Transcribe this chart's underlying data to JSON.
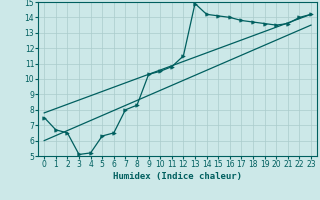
{
  "xlabel": "Humidex (Indice chaleur)",
  "xlim": [
    -0.5,
    23.5
  ],
  "ylim": [
    5,
    15
  ],
  "yticks": [
    5,
    6,
    7,
    8,
    9,
    10,
    11,
    12,
    13,
    14,
    15
  ],
  "xticks": [
    0,
    1,
    2,
    3,
    4,
    5,
    6,
    7,
    8,
    9,
    10,
    11,
    12,
    13,
    14,
    15,
    16,
    17,
    18,
    19,
    20,
    21,
    22,
    23
  ],
  "bg_color": "#cce8e8",
  "line_color": "#005f5f",
  "grid_color": "#aacccc",
  "curve1_x": [
    0,
    1,
    2,
    3,
    4,
    5,
    6,
    7,
    8,
    9,
    10,
    11,
    12,
    13,
    14,
    15,
    16,
    17,
    18,
    19,
    20,
    21,
    22,
    23
  ],
  "curve1_y": [
    7.5,
    6.7,
    6.5,
    5.1,
    5.2,
    6.3,
    6.5,
    8.0,
    8.3,
    10.3,
    10.5,
    10.8,
    11.5,
    14.9,
    14.2,
    14.1,
    14.0,
    13.8,
    13.7,
    13.6,
    13.5,
    13.6,
    14.0,
    14.2
  ],
  "curve2_x": [
    0,
    23
  ],
  "curve2_y": [
    6.0,
    13.5
  ],
  "curve3_x": [
    0,
    23
  ],
  "curve3_y": [
    7.8,
    14.2
  ]
}
